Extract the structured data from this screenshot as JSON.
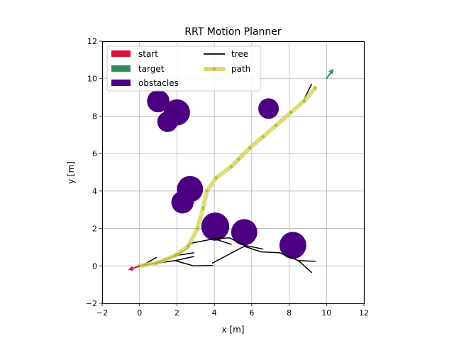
{
  "chart_data": {
    "type": "scatter",
    "title": "RRT Motion Planner",
    "xlabel": "x [m]",
    "ylabel": "y [m]",
    "xlim": [
      -2,
      12
    ],
    "ylim": [
      -2,
      12
    ],
    "xticks": [
      -2,
      0,
      2,
      4,
      6,
      8,
      10,
      12
    ],
    "yticks": [
      -2,
      0,
      2,
      4,
      6,
      8,
      10,
      12
    ],
    "grid": true,
    "legend_position": "top-left",
    "legend": [
      {
        "label": "start",
        "kind": "patch",
        "color": "#dc143c"
      },
      {
        "label": "tree",
        "kind": "line",
        "color": "#000000"
      },
      {
        "label": "target",
        "kind": "patch",
        "color": "#2e8b57"
      },
      {
        "label": "path",
        "kind": "line-marker",
        "color": "#d4d45a"
      },
      {
        "label": "obstacles",
        "kind": "patch",
        "color": "#4b0082"
      }
    ],
    "start": {
      "x": 0.0,
      "y": 0.0,
      "angle_deg": 200,
      "color": "#dc143c"
    },
    "target": {
      "x": 10.0,
      "y": 10.0,
      "angle_deg": 55,
      "color": "#2e8b57"
    },
    "obstacles": [
      {
        "x": 1.0,
        "y": 8.8,
        "r": 0.6
      },
      {
        "x": 1.5,
        "y": 7.7,
        "r": 0.55
      },
      {
        "x": 2.0,
        "y": 8.2,
        "r": 0.7
      },
      {
        "x": 6.9,
        "y": 8.4,
        "r": 0.55
      },
      {
        "x": 2.7,
        "y": 4.1,
        "r": 0.7
      },
      {
        "x": 2.3,
        "y": 3.4,
        "r": 0.6
      },
      {
        "x": 4.05,
        "y": 2.1,
        "r": 0.75
      },
      {
        "x": 5.6,
        "y": 1.8,
        "r": 0.7
      },
      {
        "x": 8.2,
        "y": 1.1,
        "r": 0.72
      }
    ],
    "obstacle_color": "#4b0082",
    "tree_color": "#000000",
    "tree_segments": [
      [
        [
          0.1,
          0.0
        ],
        [
          0.9,
          0.45
        ]
      ],
      [
        [
          0.0,
          0.0
        ],
        [
          0.9,
          0.15
        ]
      ],
      [
        [
          0.9,
          0.15
        ],
        [
          1.9,
          0.55
        ]
      ],
      [
        [
          1.9,
          0.55
        ],
        [
          2.9,
          0.7
        ]
      ],
      [
        [
          1.9,
          0.55
        ],
        [
          2.6,
          0.95
        ]
      ],
      [
        [
          2.6,
          0.95
        ],
        [
          2.7,
          1.2
        ]
      ],
      [
        [
          2.7,
          1.2
        ],
        [
          4.0,
          1.45
        ]
      ],
      [
        [
          4.0,
          1.45
        ],
        [
          4.9,
          1.15
        ]
      ],
      [
        [
          4.0,
          1.45
        ],
        [
          4.8,
          1.5
        ]
      ],
      [
        [
          4.8,
          1.5
        ],
        [
          5.6,
          1.1
        ]
      ],
      [
        [
          5.6,
          1.1
        ],
        [
          6.6,
          0.9
        ]
      ],
      [
        [
          0.9,
          0.15
        ],
        [
          1.9,
          0.28
        ]
      ],
      [
        [
          1.9,
          0.28
        ],
        [
          2.9,
          0.5
        ]
      ],
      [
        [
          1.9,
          0.28
        ],
        [
          2.9,
          0.0
        ]
      ],
      [
        [
          2.9,
          0.0
        ],
        [
          3.9,
          0.02
        ]
      ],
      [
        [
          3.9,
          0.15
        ],
        [
          5.6,
          1.05
        ]
      ],
      [
        [
          5.6,
          1.05
        ],
        [
          6.5,
          0.75
        ]
      ],
      [
        [
          6.5,
          0.75
        ],
        [
          7.5,
          0.7
        ]
      ],
      [
        [
          7.5,
          0.7
        ],
        [
          8.5,
          0.28
        ]
      ],
      [
        [
          8.5,
          0.28
        ],
        [
          9.4,
          0.25
        ]
      ],
      [
        [
          8.5,
          0.28
        ],
        [
          9.2,
          -0.35
        ]
      ],
      [
        [
          8.8,
          8.9
        ],
        [
          9.2,
          9.7
        ]
      ]
    ],
    "path": {
      "color": "#d4d45a",
      "points": [
        [
          0.0,
          0.0
        ],
        [
          0.9,
          0.15
        ],
        [
          1.9,
          0.55
        ],
        [
          2.6,
          1.05
        ],
        [
          3.1,
          2.0
        ],
        [
          3.4,
          3.1
        ],
        [
          3.6,
          4.0
        ],
        [
          4.1,
          4.7
        ],
        [
          4.9,
          5.3
        ],
        [
          5.3,
          5.7
        ],
        [
          5.9,
          6.3
        ],
        [
          6.6,
          6.9
        ],
        [
          7.3,
          7.5
        ],
        [
          8.1,
          8.2
        ],
        [
          8.8,
          8.8
        ],
        [
          9.4,
          9.5
        ]
      ]
    }
  }
}
